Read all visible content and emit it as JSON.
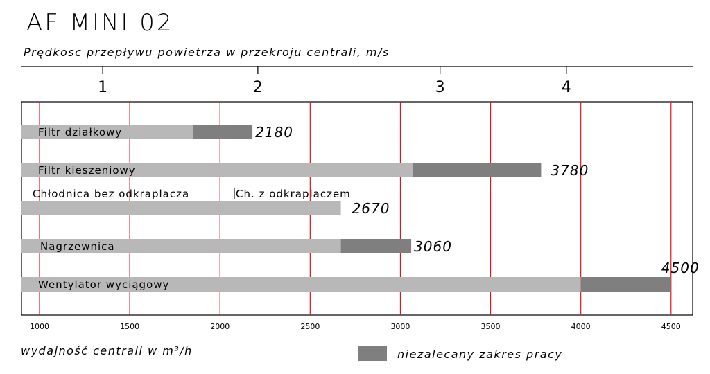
{
  "chart_data": {
    "type": "bar",
    "title": "AF MINI 02",
    "subtitle": "Prędkosc przepływu powietrza w przekroju centrali, m/s",
    "xlabel": "wydajność centrali w m³/h",
    "x_ticks": [
      1000,
      1500,
      2000,
      2500,
      3000,
      3500,
      4000,
      4500
    ],
    "xlim": [
      900,
      4620
    ],
    "velocity_ticks": [
      {
        "label": "1",
        "airflow": 1350
      },
      {
        "label": "2",
        "airflow": 2210
      },
      {
        "label": "3",
        "airflow": 3220
      },
      {
        "label": "4",
        "airflow": 3920
      }
    ],
    "bars": [
      {
        "label": "Filtr działkowy",
        "start": 900,
        "recommended_end": 1850,
        "max": 2180,
        "value_label": "2180"
      },
      {
        "label": "Filtr kieszeniowy",
        "start": 900,
        "recommended_end": 3070,
        "max": 3780,
        "value_label": "3780"
      },
      {
        "label": "Chłodnica bez odkraplacza",
        "start": 900,
        "recommended_end": 2670,
        "max": 2670,
        "value_label": "2670",
        "marker_label": "Ch. z odkraplaczem",
        "marker_airflow": 2080
      },
      {
        "label": "Nagrzewnica",
        "start": 900,
        "recommended_end": 2670,
        "max": 3060,
        "value_label": "3060"
      },
      {
        "label": "Wentylator wyciągowy",
        "start": 900,
        "recommended_end": 4000,
        "max": 4500,
        "value_label": "4500"
      }
    ],
    "legend": {
      "label": "niezalecany zakres pracy",
      "placement": "bottom-center"
    },
    "colors": {
      "recommended": "#b8b8b8",
      "not_recommended": "#7f7f7f",
      "gridline": "#e0141c"
    }
  }
}
